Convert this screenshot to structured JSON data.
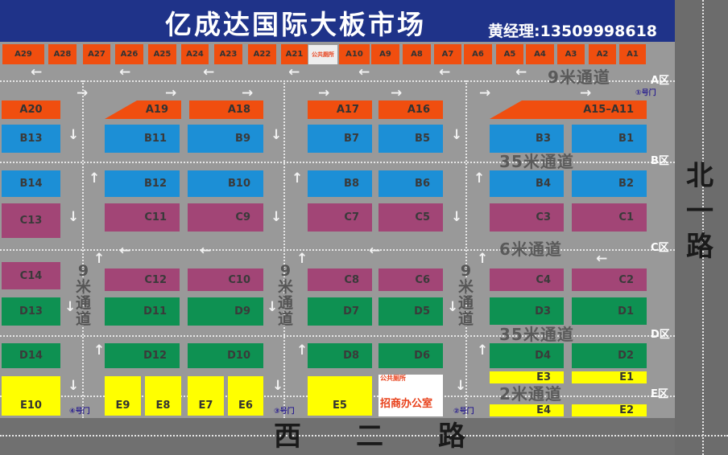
{
  "header": {
    "title": "亿成达国际大板市场",
    "contact": "黄经理:13509998618"
  },
  "roads": {
    "east": [
      "北",
      "一",
      "路"
    ],
    "south": [
      "西",
      "二",
      "路"
    ]
  },
  "zones": {
    "A": {
      "label": "A区",
      "stalls": [
        "A29",
        "A28",
        "A27",
        "A26",
        "A25",
        "A24",
        "A23",
        "A22",
        "A21",
        "A10",
        "A9",
        "A8",
        "A7",
        "A6",
        "A5",
        "A4",
        "A3",
        "A2",
        "A1",
        "A20",
        "A19",
        "A18",
        "A17",
        "A16",
        "A15–A11"
      ]
    },
    "B": {
      "label": "B区",
      "stalls": [
        "B13",
        "B11",
        "B9",
        "B7",
        "B5",
        "B3",
        "B1",
        "B14",
        "B12",
        "B10",
        "B8",
        "B6",
        "B4",
        "B2"
      ]
    },
    "C": {
      "label": "C区",
      "stalls": [
        "C13",
        "C11",
        "C9",
        "C7",
        "C5",
        "C3",
        "C1",
        "C14",
        "C12",
        "C10",
        "C8",
        "C6",
        "C4",
        "C2"
      ]
    },
    "D": {
      "label": "D区",
      "stalls": [
        "D13",
        "D11",
        "D9",
        "D7",
        "D5",
        "D3",
        "D1",
        "D14",
        "D12",
        "D10",
        "D8",
        "D6",
        "D4",
        "D2"
      ]
    },
    "E": {
      "label": "E区",
      "stalls": [
        "E10",
        "E9",
        "E8",
        "E7",
        "E6",
        "E5",
        "E3",
        "E1",
        "E4",
        "E2"
      ]
    }
  },
  "facilities": {
    "public_toilet": "公共厕所",
    "office": "招商办公室"
  },
  "gates": [
    "①号门",
    "②号门",
    "③号门",
    "④号门"
  ],
  "channels": {
    "v9": [
      "9",
      "米",
      "通",
      "道"
    ],
    "top": "9米通道",
    "b35": "35米通道",
    "c6": "6米通道",
    "d35": "35米通道",
    "e2": "2米通道"
  },
  "colors": {
    "header": "#1f3389",
    "A": "#f04e0f",
    "B": "#1c8fd6",
    "C": "#a24576",
    "D": "#0e9152",
    "E": "#ffff00"
  }
}
